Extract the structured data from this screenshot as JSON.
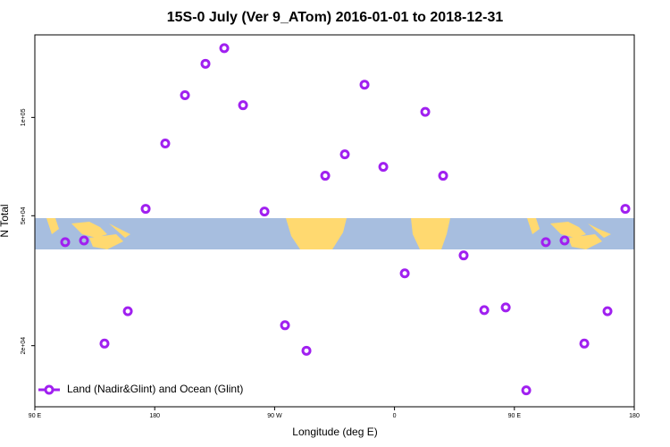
{
  "chart_data": {
    "type": "scatter",
    "title": "15S-0 July (Ver 9_ATom)   2016-01-01 to 2018-12-31",
    "x_label": "Longitude (deg E)",
    "y_label": "N Total",
    "xlim": [
      90,
      540
    ],
    "ylim": [
      13000,
      179000
    ],
    "ylog": true,
    "xticks": [
      {
        "value": 90,
        "label": "90 E"
      },
      180,
      {
        "value": 270,
        "label": "90 W"
      },
      {
        "value": 360,
        "label": "0"
      },
      {
        "value": 450,
        "label": "90 E"
      },
      {
        "value": 540,
        "label": "180"
      }
    ],
    "yticks": [
      {
        "value": 20000,
        "label": "2e+04"
      },
      {
        "value": 50000,
        "label": "5e+04"
      },
      {
        "value": 100000,
        "label": "1e+05"
      }
    ],
    "legend": "bottom-left",
    "series": [
      {
        "name": "Land (Nadir&Glint) and Ocean (Glint)",
        "color": "#a020f0",
        "x": [
          112.8,
          126.9,
          142.3,
          159.8,
          173.2,
          187.9,
          202.7,
          218.1,
          232.2,
          246.3,
          262.4,
          277.8,
          293.9,
          308.0,
          322.7,
          337.5,
          351.6,
          367.7,
          383.1,
          396.5,
          411.9,
          427.4,
          443.5,
          458.9,
          473.6,
          487.7,
          502.5,
          519.9,
          533.3
        ],
        "values": [
          41500,
          42000,
          20300,
          25500,
          52500,
          83200,
          117000,
          146000,
          163000,
          109000,
          51500,
          23100,
          19300,
          66300,
          77100,
          126000,
          70600,
          33300,
          104000,
          66300,
          37800,
          25700,
          26200,
          14600,
          41500,
          42000,
          20300,
          25500,
          52500
        ]
      }
    ]
  }
}
